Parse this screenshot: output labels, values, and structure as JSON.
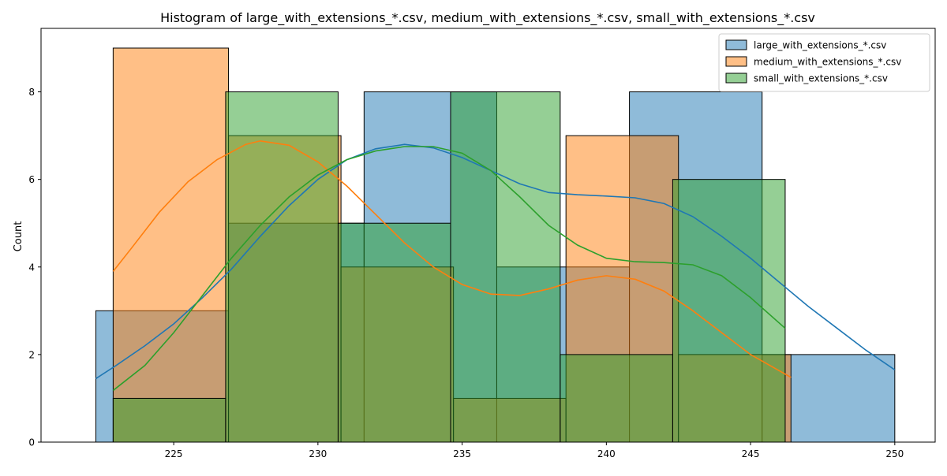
{
  "chart_data": {
    "type": "bar",
    "title": "Histogram of large_with_extensions_*.csv, medium_with_extensions_*.csv, small_with_extensions_*.csv",
    "xlabel": "",
    "ylabel": "Count",
    "xlim": [
      220.4,
      251.4
    ],
    "ylim": [
      0,
      9.45
    ],
    "x_ticks": [
      225,
      230,
      235,
      240,
      245,
      250
    ],
    "y_ticks": [
      0,
      2,
      4,
      6,
      8
    ],
    "grid": false,
    "legend_position": "top-right",
    "series": [
      {
        "name": "large_with_extensions_*.csv",
        "color": "#1f77b4",
        "bins": [
          {
            "x0": 222.3,
            "x1": 226.9,
            "count": 3
          },
          {
            "x0": 226.9,
            "x1": 231.6,
            "count": 5
          },
          {
            "x0": 231.6,
            "x1": 236.2,
            "count": 8
          },
          {
            "x0": 236.2,
            "x1": 240.8,
            "count": 4
          },
          {
            "x0": 240.8,
            "x1": 245.4,
            "count": 8
          },
          {
            "x0": 245.4,
            "x1": 250.0,
            "count": 2
          }
        ],
        "kde": [
          [
            222.3,
            1.45
          ],
          [
            223.0,
            1.75
          ],
          [
            224.0,
            2.2
          ],
          [
            225.0,
            2.7
          ],
          [
            226.0,
            3.3
          ],
          [
            227.0,
            3.95
          ],
          [
            228.0,
            4.7
          ],
          [
            229.0,
            5.4
          ],
          [
            230.0,
            6.0
          ],
          [
            231.0,
            6.45
          ],
          [
            232.0,
            6.7
          ],
          [
            233.0,
            6.8
          ],
          [
            234.0,
            6.72
          ],
          [
            235.0,
            6.5
          ],
          [
            236.0,
            6.2
          ],
          [
            237.0,
            5.9
          ],
          [
            238.0,
            5.7
          ],
          [
            239.0,
            5.65
          ],
          [
            240.0,
            5.62
          ],
          [
            241.0,
            5.58
          ],
          [
            242.0,
            5.45
          ],
          [
            243.0,
            5.15
          ],
          [
            244.0,
            4.7
          ],
          [
            245.0,
            4.2
          ],
          [
            246.0,
            3.65
          ],
          [
            247.0,
            3.1
          ],
          [
            248.0,
            2.6
          ],
          [
            249.0,
            2.1
          ],
          [
            250.0,
            1.65
          ]
        ]
      },
      {
        "name": "medium_with_extensions_*.csv",
        "color": "#ff7f0e",
        "bins": [
          {
            "x0": 222.9,
            "x1": 226.9,
            "count": 9
          },
          {
            "x0": 226.9,
            "x1": 230.8,
            "count": 7
          },
          {
            "x0": 230.8,
            "x1": 234.7,
            "count": 4
          },
          {
            "x0": 234.7,
            "x1": 238.6,
            "count": 1
          },
          {
            "x0": 238.6,
            "x1": 242.5,
            "count": 7
          },
          {
            "x0": 242.5,
            "x1": 246.4,
            "count": 2
          }
        ],
        "kde": [
          [
            222.9,
            3.9
          ],
          [
            223.5,
            4.4
          ],
          [
            224.5,
            5.25
          ],
          [
            225.5,
            5.95
          ],
          [
            226.5,
            6.45
          ],
          [
            227.5,
            6.8
          ],
          [
            228.0,
            6.88
          ],
          [
            229.0,
            6.78
          ],
          [
            230.0,
            6.4
          ],
          [
            231.0,
            5.85
          ],
          [
            232.0,
            5.2
          ],
          [
            233.0,
            4.55
          ],
          [
            234.0,
            4.0
          ],
          [
            235.0,
            3.6
          ],
          [
            236.0,
            3.38
          ],
          [
            237.0,
            3.35
          ],
          [
            238.0,
            3.5
          ],
          [
            239.0,
            3.7
          ],
          [
            240.0,
            3.8
          ],
          [
            241.0,
            3.72
          ],
          [
            242.0,
            3.45
          ],
          [
            243.0,
            3.0
          ],
          [
            244.0,
            2.5
          ],
          [
            245.0,
            2.0
          ],
          [
            246.4,
            1.48
          ]
        ]
      },
      {
        "name": "small_with_extensions_*.csv",
        "color": "#2ca02c",
        "bins": [
          {
            "x0": 222.9,
            "x1": 226.8,
            "count": 1
          },
          {
            "x0": 226.8,
            "x1": 230.7,
            "count": 8
          },
          {
            "x0": 230.7,
            "x1": 234.6,
            "count": 5
          },
          {
            "x0": 234.6,
            "x1": 238.4,
            "count": 8
          },
          {
            "x0": 238.4,
            "x1": 242.3,
            "count": 2
          },
          {
            "x0": 242.3,
            "x1": 246.2,
            "count": 6
          }
        ],
        "kde": [
          [
            222.9,
            1.18
          ],
          [
            224.0,
            1.75
          ],
          [
            225.0,
            2.5
          ],
          [
            226.0,
            3.35
          ],
          [
            227.0,
            4.2
          ],
          [
            228.0,
            4.95
          ],
          [
            229.0,
            5.6
          ],
          [
            230.0,
            6.1
          ],
          [
            231.0,
            6.45
          ],
          [
            232.0,
            6.65
          ],
          [
            233.0,
            6.75
          ],
          [
            234.0,
            6.75
          ],
          [
            235.0,
            6.6
          ],
          [
            236.0,
            6.2
          ],
          [
            237.0,
            5.6
          ],
          [
            238.0,
            4.95
          ],
          [
            239.0,
            4.5
          ],
          [
            240.0,
            4.2
          ],
          [
            241.0,
            4.12
          ],
          [
            242.0,
            4.1
          ],
          [
            243.0,
            4.05
          ],
          [
            244.0,
            3.8
          ],
          [
            245.0,
            3.3
          ],
          [
            246.2,
            2.6
          ]
        ]
      }
    ]
  }
}
